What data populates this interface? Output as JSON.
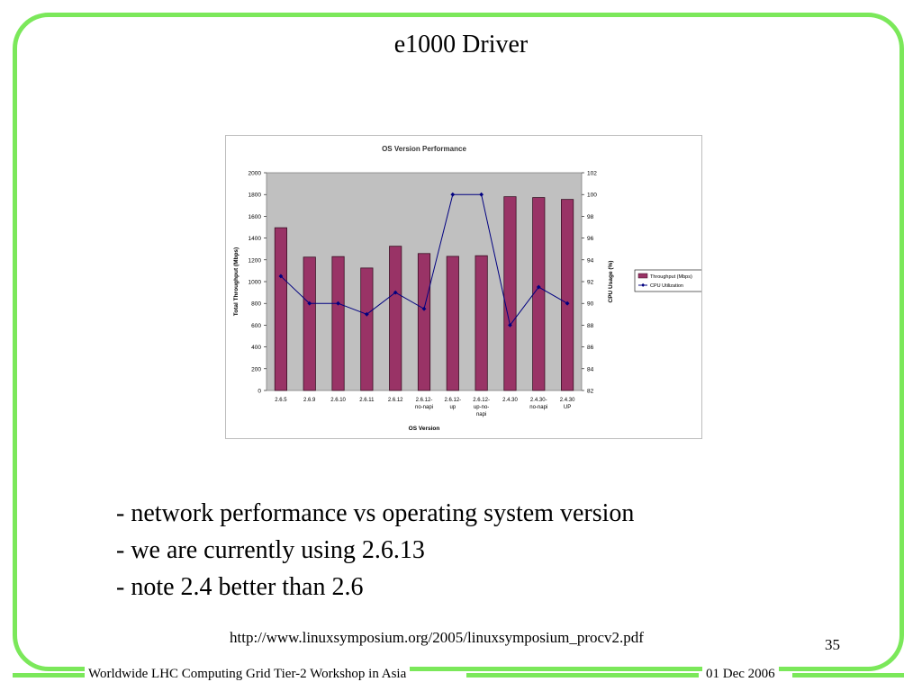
{
  "slide": {
    "title": "e1000 Driver",
    "bullets": [
      "- network performance vs operating system version",
      "- we are currently using 2.6.13",
      "- note 2.4 better than 2.6"
    ],
    "source_url": "http://www.linuxsymposium.org/2005/linuxsymposium_procv2.pdf",
    "page_number": "35",
    "footer_left": "Worldwide LHC Computing Grid Tier-2 Workshop in Asia",
    "footer_right": "01 Dec 2006"
  },
  "colors": {
    "frame_green": "#7be85a",
    "plot_area": "#c0c0c0",
    "bar": "#993366",
    "line": "#000080"
  },
  "chart_data": {
    "type": "bar",
    "title": "OS Version Performance",
    "xlabel": "OS Version",
    "ylabel": "Total Throughput (Mbps)",
    "y2label": "CPU Usage (%)",
    "categories": [
      [
        "2.6.5"
      ],
      [
        "2.6.9"
      ],
      [
        "2.6.10"
      ],
      [
        "2.6.11"
      ],
      [
        "2.6.12"
      ],
      [
        "2.6.12-",
        "no-napi"
      ],
      [
        "2.6.12-",
        "up"
      ],
      [
        "2.6.12-",
        "up-no-",
        "napi"
      ],
      [
        "2.4.30"
      ],
      [
        "2.4.30-",
        "no-napi"
      ],
      [
        "2.4.30",
        "UP"
      ]
    ],
    "ylim": [
      0,
      2000
    ],
    "yticks": [
      0,
      200,
      400,
      600,
      800,
      1000,
      1200,
      1400,
      1600,
      1800,
      2000
    ],
    "y2lim": [
      82,
      102
    ],
    "y2ticks": [
      82,
      84,
      86,
      88,
      90,
      92,
      94,
      96,
      98,
      100,
      102
    ],
    "series": [
      {
        "name": "Throughput (Mbps)",
        "type": "bar",
        "axis": "left",
        "values": [
          1495,
          1225,
          1230,
          1125,
          1325,
          1258,
          1232,
          1238,
          1780,
          1772,
          1755
        ]
      },
      {
        "name": "CPU Utilization",
        "type": "line",
        "axis": "right",
        "values": [
          92.5,
          90,
          90,
          89,
          91,
          89.5,
          100,
          100,
          88,
          91.5,
          90
        ]
      }
    ],
    "legend_position": "right",
    "grid": false
  }
}
